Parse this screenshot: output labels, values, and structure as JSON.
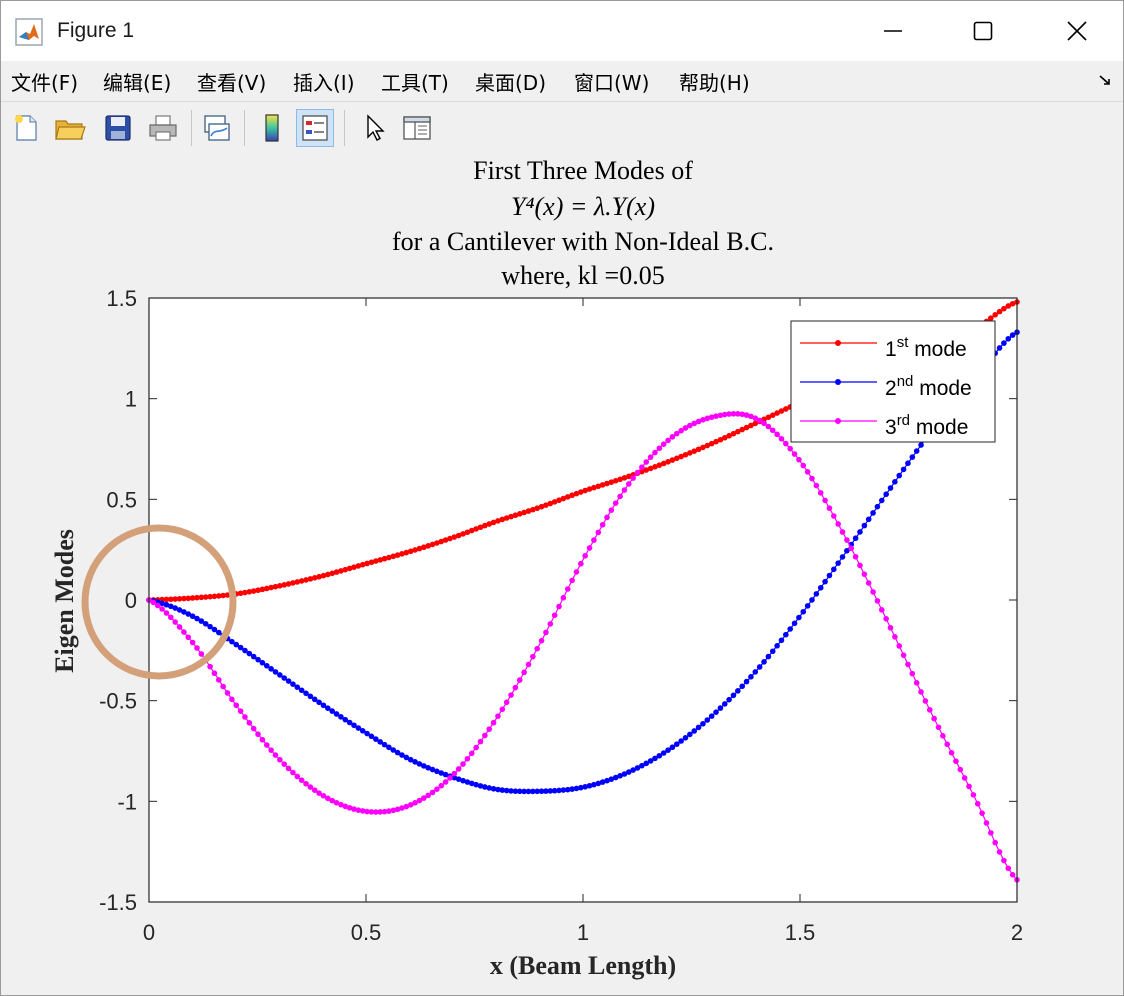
{
  "window": {
    "title": "Figure 1"
  },
  "menubar": {
    "items": [
      "文件(F)",
      "编辑(E)",
      "查看(V)",
      "插入(I)",
      "工具(T)",
      "桌面(D)",
      "窗口(W)",
      "帮助(H)"
    ]
  },
  "toolbar": {
    "buttons": [
      "new-figure",
      "open-file",
      "save",
      "print",
      "link-plot",
      "insert-colorbar",
      "insert-legend",
      "edit-plot",
      "property-inspector"
    ]
  },
  "chart_data": {
    "type": "line",
    "title_lines": [
      "First Three Modes of",
      "Y⁴(x) = λ.Y(x)",
      "for a Cantilever with Non-Ideal B.C.",
      "where, kl =0.05"
    ],
    "xlabel": "x (Beam Length)",
    "ylabel": "Eigen Modes",
    "xlim": [
      0,
      2
    ],
    "ylim": [
      -1.5,
      1.5
    ],
    "xticks": [
      0,
      0.5,
      1,
      1.5,
      2
    ],
    "xtick_labels": [
      "0",
      "0.5",
      "1",
      "1.5",
      "2"
    ],
    "yticks": [
      -1.5,
      -1,
      -0.5,
      0,
      0.5,
      1,
      1.5
    ],
    "ytick_labels": [
      "-1.5",
      "-1",
      "-0.5",
      "0",
      "0.5",
      "1",
      "1.5"
    ],
    "grid": false,
    "legend_position": "top-right",
    "marker_points": 200,
    "series": [
      {
        "name": "1st mode",
        "base": "1",
        "sup": "st",
        "rest": " mode",
        "color": "#ff0000",
        "x": [
          0,
          0.1,
          0.2,
          0.3,
          0.4,
          0.5,
          0.6,
          0.7,
          0.8,
          0.9,
          1.0,
          1.1,
          1.2,
          1.3,
          1.4,
          1.5,
          1.6,
          1.7,
          1.8,
          1.9,
          2.0
        ],
        "y": [
          0,
          0.01,
          0.03,
          0.07,
          0.12,
          0.18,
          0.24,
          0.31,
          0.39,
          0.46,
          0.54,
          0.61,
          0.69,
          0.78,
          0.88,
          0.98,
          1.06,
          1.14,
          1.23,
          1.34,
          1.48
        ]
      },
      {
        "name": "2nd mode",
        "base": "2",
        "sup": "nd",
        "rest": " mode",
        "color": "#0000ff",
        "x": [
          0,
          0.1,
          0.2,
          0.3,
          0.4,
          0.5,
          0.6,
          0.7,
          0.8,
          0.9,
          1.0,
          1.1,
          1.2,
          1.3,
          1.4,
          1.5,
          1.6,
          1.7,
          1.8,
          1.9,
          2.0
        ],
        "y": [
          0,
          -0.08,
          -0.22,
          -0.37,
          -0.52,
          -0.66,
          -0.79,
          -0.88,
          -0.94,
          -0.95,
          -0.93,
          -0.86,
          -0.74,
          -0.57,
          -0.35,
          -0.08,
          0.22,
          0.53,
          0.83,
          1.09,
          1.33
        ]
      },
      {
        "name": "3rd mode",
        "base": "3",
        "sup": "rd",
        "rest": " mode",
        "color": "#ff00ff",
        "x": [
          0,
          0.1,
          0.2,
          0.3,
          0.4,
          0.5,
          0.6,
          0.7,
          0.8,
          0.9,
          1.0,
          1.1,
          1.2,
          1.3,
          1.4,
          1.5,
          1.6,
          1.7,
          1.8,
          1.9,
          2.0
        ],
        "y": [
          0,
          -0.21,
          -0.52,
          -0.79,
          -0.97,
          -1.05,
          -1.02,
          -0.87,
          -0.59,
          -0.22,
          0.2,
          0.56,
          0.8,
          0.91,
          0.9,
          0.69,
          0.33,
          -0.1,
          -0.55,
          -0.97,
          -1.39
        ]
      }
    ]
  },
  "annotation": {
    "shape": "circle",
    "color": "#d4a07a"
  }
}
